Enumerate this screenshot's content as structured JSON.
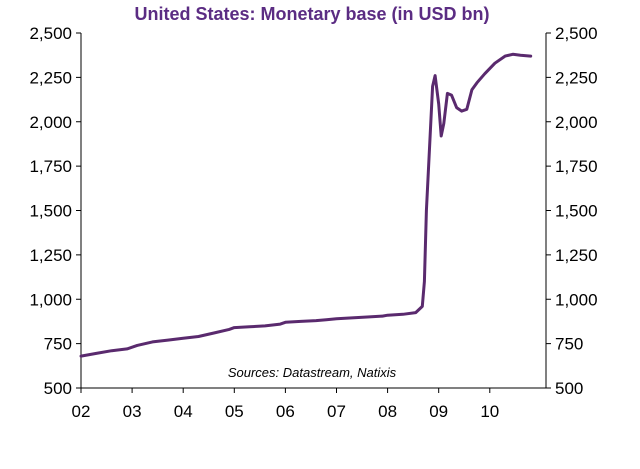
{
  "chart_data": {
    "type": "line",
    "title": "United States: Monetary base (in USD bn)",
    "annotation": "Sources: Datastream, Natixis",
    "xlabel": "",
    "ylabel": "",
    "x_tick_labels": [
      "02",
      "03",
      "04",
      "05",
      "06",
      "07",
      "08",
      "09",
      "10"
    ],
    "x_tick_values": [
      2002,
      2003,
      2004,
      2005,
      2006,
      2007,
      2008,
      2009,
      2010
    ],
    "xlim": [
      2002,
      2011.1
    ],
    "y_tick_labels": [
      "500",
      "750",
      "1,000",
      "1,250",
      "1,500",
      "1,750",
      "2,000",
      "2,250",
      "2,500"
    ],
    "y_tick_values": [
      500,
      750,
      1000,
      1250,
      1500,
      1750,
      2000,
      2250,
      2500
    ],
    "ylim": [
      500,
      2500
    ],
    "secondary_y_axis": true,
    "grid": false,
    "colors": {
      "line": "#5a2a6e",
      "title": "#5b2c83",
      "axis": "#000000"
    },
    "series": [
      {
        "x": [
          2002.0,
          2002.3,
          2002.6,
          2002.9,
          2003.1,
          2003.4,
          2003.7,
          2004.0,
          2004.3,
          2004.6,
          2004.9,
          2005.0,
          2005.3,
          2005.6,
          2005.9,
          2006.0,
          2006.3,
          2006.6,
          2006.8,
          2007.0,
          2007.3,
          2007.6,
          2007.9,
          2008.0,
          2008.3,
          2008.55,
          2008.68,
          2008.72,
          2008.76,
          2008.82,
          2008.88,
          2008.93,
          2009.0,
          2009.05,
          2009.1,
          2009.17,
          2009.25,
          2009.35,
          2009.45,
          2009.55,
          2009.65,
          2009.75,
          2009.9,
          2010.1,
          2010.3,
          2010.45,
          2010.6,
          2010.8
        ],
        "y": [
          680,
          695,
          710,
          720,
          740,
          760,
          770,
          780,
          790,
          810,
          830,
          840,
          845,
          850,
          860,
          870,
          875,
          880,
          885,
          890,
          895,
          900,
          905,
          910,
          915,
          925,
          960,
          1100,
          1500,
          1850,
          2200,
          2260,
          2100,
          1920,
          1990,
          2160,
          2150,
          2080,
          2060,
          2070,
          2180,
          2220,
          2270,
          2330,
          2370,
          2380,
          2375,
          2370
        ]
      }
    ]
  }
}
